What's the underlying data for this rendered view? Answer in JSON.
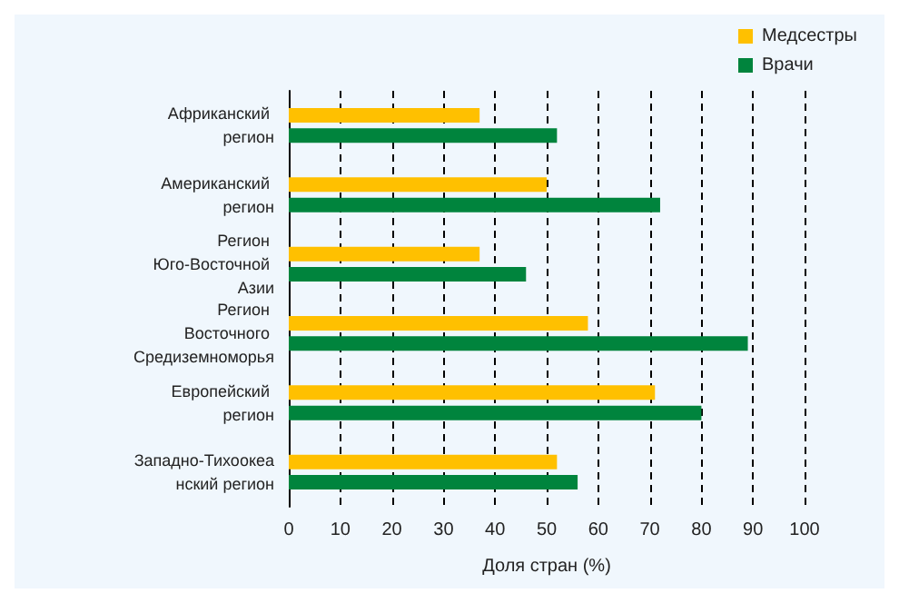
{
  "chart_data": {
    "type": "bar",
    "orientation": "horizontal",
    "xlabel": "Доля стран (%)",
    "categories": [
      "Африканский регион",
      "Американский регион",
      "Регион Юго-Восточной Азии",
      "Регион Восточного Средиземноморья",
      "Европейский регион",
      "Западно-Тихоокеанский регион"
    ],
    "series": [
      {
        "name": "Медсестры",
        "color": "#ffc000",
        "values": [
          37,
          50,
          37,
          58,
          71,
          52
        ]
      },
      {
        "name": "Врачи",
        "color": "#00843d",
        "values": [
          52,
          72,
          46,
          89,
          80,
          56
        ]
      }
    ],
    "xlim": [
      0,
      100
    ],
    "xticks": [
      0,
      10,
      20,
      30,
      40,
      50,
      60,
      70,
      80,
      90,
      100
    ],
    "grid": "x",
    "legend": "top right"
  }
}
